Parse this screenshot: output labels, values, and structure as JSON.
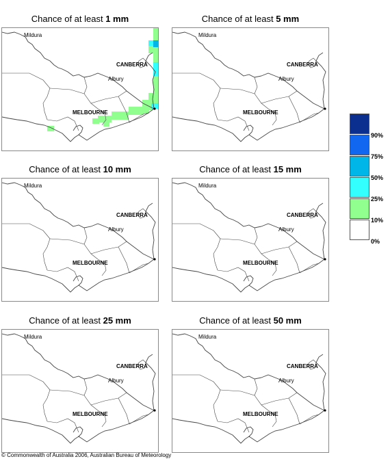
{
  "panels": [
    {
      "prefix": "Chance of at least",
      "amount": "1 mm",
      "rain_shading": true
    },
    {
      "prefix": "Chance of at least",
      "amount": "5 mm",
      "rain_shading": false
    },
    {
      "prefix": "Chance of at least",
      "amount": "10 mm",
      "rain_shading": false
    },
    {
      "prefix": "Chance of at least",
      "amount": "15 mm",
      "rain_shading": false
    },
    {
      "prefix": "Chance of at least",
      "amount": "25 mm",
      "rain_shading": false
    },
    {
      "prefix": "Chance of at least",
      "amount": "50 mm",
      "rain_shading": false
    }
  ],
  "places": {
    "mildura": "Mildura",
    "canberra": "CANBERRA",
    "albury": "Albury",
    "melbourne": "MELBOURNE"
  },
  "legend": {
    "labels": [
      "90%",
      "75%",
      "50%",
      "25%",
      "10%",
      "0%"
    ],
    "colors": [
      "#0b2f8f",
      "#1167f0",
      "#00b6e8",
      "#33ffff",
      "#90ff90",
      "#ffffff"
    ]
  },
  "copyright": "© Commonwealth of Australia 2006, Australian Bureau of Meteorology"
}
